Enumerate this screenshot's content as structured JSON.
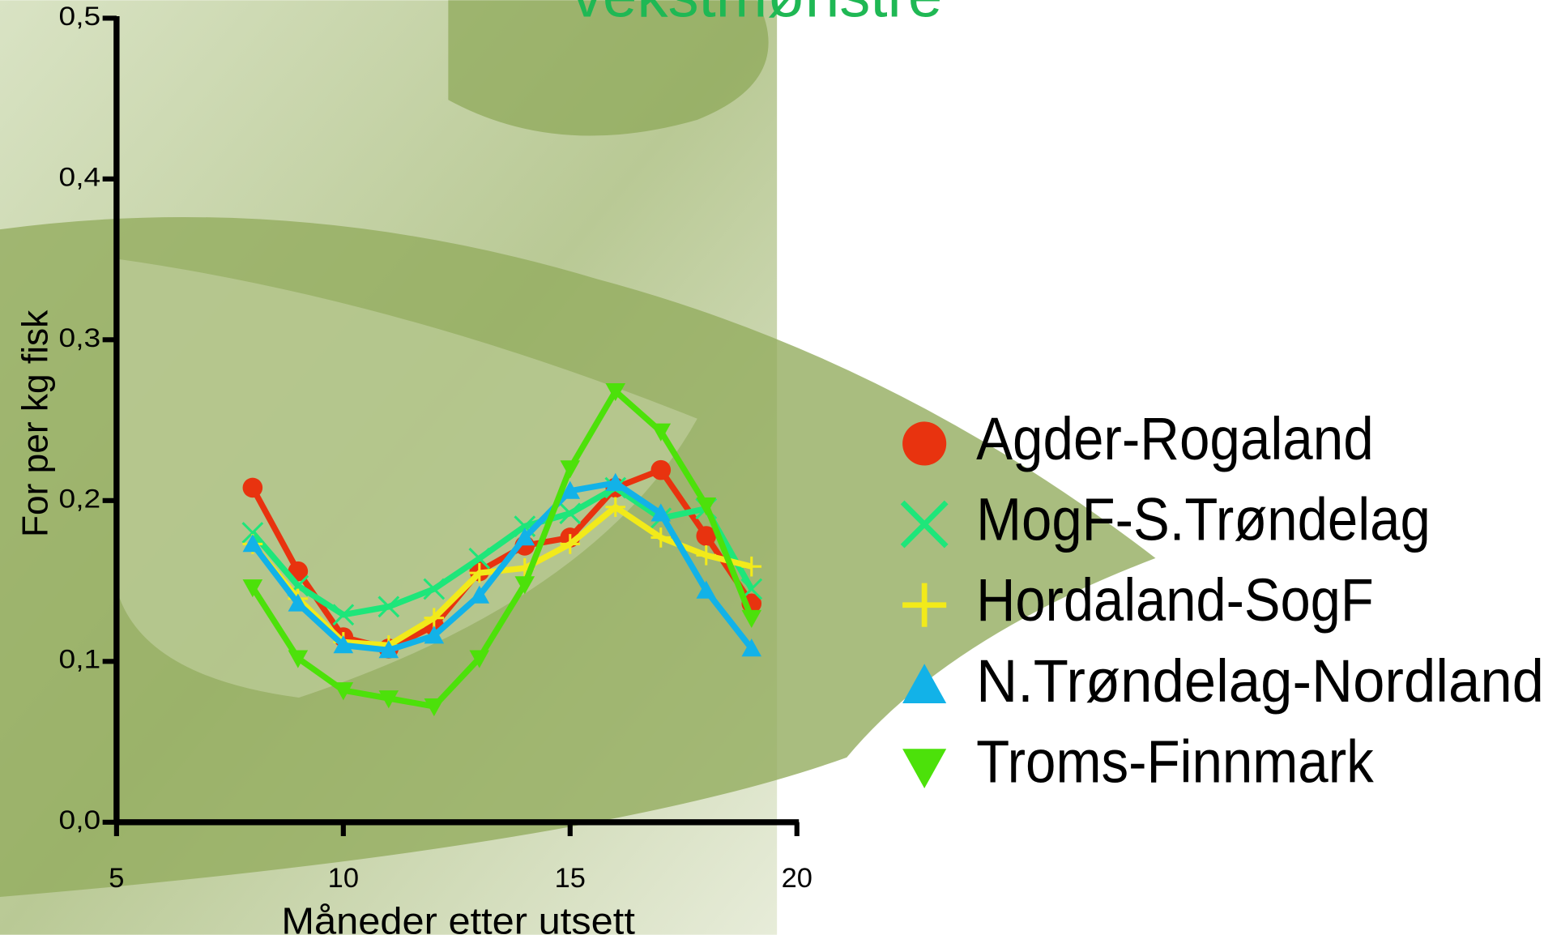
{
  "chart_data": {
    "type": "line",
    "title": "vekstmønstre",
    "x_label": "Måneder etter utsett",
    "y_label": "For per kg fisk",
    "x": [
      8,
      9,
      10,
      11,
      12,
      13,
      14,
      15,
      16,
      17,
      18,
      19
    ],
    "xlim": [
      5,
      20
    ],
    "xticks": [
      5,
      10,
      15,
      20
    ],
    "ylim": [
      0,
      0.5
    ],
    "yticks": [
      {
        "value": 0,
        "label": "0,0"
      },
      {
        "value": 0.1,
        "label": "0,1"
      },
      {
        "value": 0.2,
        "label": "0,2"
      },
      {
        "value": 0.3,
        "label": "0,3"
      },
      {
        "value": 0.4,
        "label": "0,4"
      },
      {
        "value": 0.5,
        "label": "0,5"
      }
    ],
    "legend": "right",
    "series": [
      {
        "name": "Agder-Rogaland",
        "color": "#e8330f",
        "marker": "circle",
        "values": [
          0.208,
          0.156,
          0.115,
          0.108,
          0.122,
          0.156,
          0.172,
          0.177,
          0.208,
          0.219,
          0.178,
          0.136
        ]
      },
      {
        "name": "MogF-S.Trøndelag",
        "color": "#1ee67a",
        "marker": "x",
        "values": [
          0.18,
          0.147,
          0.129,
          0.134,
          0.145,
          0.164,
          0.184,
          0.192,
          0.208,
          0.189,
          0.195,
          0.145
        ]
      },
      {
        "name": "Hordaland-SogF",
        "color": "#f2ea1a",
        "marker": "plus",
        "values": [
          0.173,
          0.139,
          0.112,
          0.11,
          0.127,
          0.155,
          0.158,
          0.173,
          0.196,
          0.177,
          0.166,
          0.159
        ]
      },
      {
        "name": "N.Trøndelag-Nordland",
        "color": "#12b2e8",
        "marker": "triangle-up",
        "values": [
          0.173,
          0.136,
          0.11,
          0.107,
          0.116,
          0.141,
          0.177,
          0.206,
          0.211,
          0.192,
          0.144,
          0.108
        ]
      },
      {
        "name": "Troms-Finnmark",
        "color": "#4ce10a",
        "marker": "triangle-down",
        "values": [
          0.146,
          0.102,
          0.082,
          0.077,
          0.072,
          0.102,
          0.148,
          0.22,
          0.268,
          0.243,
          0.197,
          0.127
        ]
      }
    ]
  }
}
